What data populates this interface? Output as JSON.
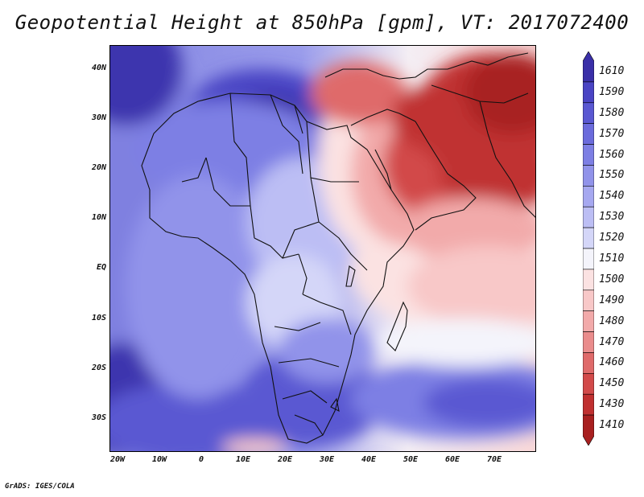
{
  "title": "Geopotential Height at 850hPa [gpm], VT: 2017072400",
  "credit": "GrADS: IGES/COLA",
  "map": {
    "variable": "Geopotential Height",
    "level": "850hPa",
    "units": "gpm",
    "valid_time": "2017072400",
    "lat_labels": [
      "40N",
      "30N",
      "20N",
      "10N",
      "EQ",
      "10S",
      "20S",
      "30S"
    ],
    "lon_labels": [
      "20W",
      "10W",
      "0",
      "10E",
      "20E",
      "30E",
      "40E",
      "50E",
      "60E",
      "70E"
    ]
  },
  "colorbar": {
    "levels": [
      "1610",
      "1590",
      "1580",
      "1570",
      "1560",
      "1550",
      "1540",
      "1530",
      "1520",
      "1510",
      "1500",
      "1490",
      "1480",
      "1470",
      "1460",
      "1450",
      "1430",
      "1410"
    ],
    "colors": [
      "#3a2fa8",
      "#4a44c4",
      "#5a58d2",
      "#6b6bdc",
      "#7d7fe4",
      "#9193ea",
      "#a6a8f0",
      "#bcbef4",
      "#d4d6f8",
      "#f4f4fb",
      "#fbe2e2",
      "#f8c8c8",
      "#f2aaaa",
      "#ea8c8c",
      "#df6a6a",
      "#d24a4a",
      "#c03030",
      "#a82020"
    ]
  }
}
